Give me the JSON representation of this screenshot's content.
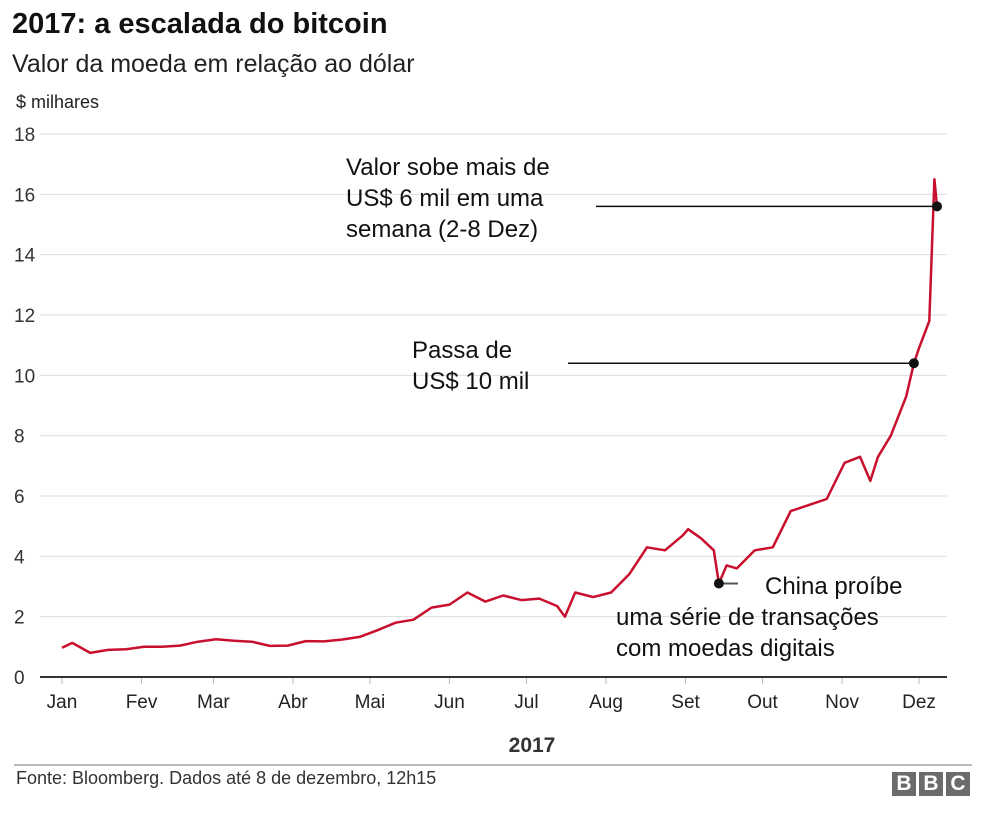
{
  "header": {
    "title": "2017: a escalada do bitcoin",
    "subtitle": "Valor da moeda em relação ao dólar",
    "unit": "$ milhares"
  },
  "footer": {
    "source": "Fonte: Bloomberg. Dados até 8 de dezembro, 12h15",
    "logo": "BBC"
  },
  "chart_data": {
    "type": "line",
    "title": "2017: a escalada do bitcoin",
    "subtitle": "Valor da moeda em relação ao dólar",
    "ylabel": "$ milhares",
    "xlabel": "2017",
    "ylim": [
      0,
      18
    ],
    "yticks": [
      0,
      2,
      4,
      6,
      8,
      10,
      12,
      14,
      16,
      18
    ],
    "xticks": [
      "Jan",
      "Fev",
      "Mar",
      "Abr",
      "Mai",
      "Jun",
      "Jul",
      "Aug",
      "Set",
      "Out",
      "Nov",
      "Dez"
    ],
    "grid": true,
    "color": "#c8102e",
    "series": [
      {
        "values": [
          [
            "2017-01-01",
            0.97
          ],
          [
            "2017-01-05",
            1.13
          ],
          [
            "2017-01-12",
            0.8
          ],
          [
            "2017-01-19",
            0.9
          ],
          [
            "2017-01-26",
            0.92
          ],
          [
            "2017-02-02",
            1.0
          ],
          [
            "2017-02-09",
            1.0
          ],
          [
            "2017-02-16",
            1.04
          ],
          [
            "2017-02-23",
            1.17
          ],
          [
            "2017-03-02",
            1.25
          ],
          [
            "2017-03-09",
            1.2
          ],
          [
            "2017-03-16",
            1.17
          ],
          [
            "2017-03-23",
            1.03
          ],
          [
            "2017-03-30",
            1.04
          ],
          [
            "2017-04-06",
            1.19
          ],
          [
            "2017-04-13",
            1.18
          ],
          [
            "2017-04-20",
            1.24
          ],
          [
            "2017-04-27",
            1.33
          ],
          [
            "2017-05-04",
            1.55
          ],
          [
            "2017-05-11",
            1.8
          ],
          [
            "2017-05-18",
            1.9
          ],
          [
            "2017-05-25",
            2.3
          ],
          [
            "2017-06-01",
            2.4
          ],
          [
            "2017-06-08",
            2.8
          ],
          [
            "2017-06-15",
            2.5
          ],
          [
            "2017-06-22",
            2.7
          ],
          [
            "2017-06-29",
            2.55
          ],
          [
            "2017-07-06",
            2.6
          ],
          [
            "2017-07-13",
            2.35
          ],
          [
            "2017-07-16",
            2.0
          ],
          [
            "2017-07-20",
            2.8
          ],
          [
            "2017-07-27",
            2.65
          ],
          [
            "2017-08-03",
            2.8
          ],
          [
            "2017-08-10",
            3.4
          ],
          [
            "2017-08-17",
            4.3
          ],
          [
            "2017-08-24",
            4.2
          ],
          [
            "2017-08-31",
            4.7
          ],
          [
            "2017-09-02",
            4.9
          ],
          [
            "2017-09-07",
            4.6
          ],
          [
            "2017-09-12",
            4.2
          ],
          [
            "2017-09-14",
            3.1
          ],
          [
            "2017-09-17",
            3.7
          ],
          [
            "2017-09-21",
            3.6
          ],
          [
            "2017-09-28",
            4.2
          ],
          [
            "2017-10-05",
            4.3
          ],
          [
            "2017-10-12",
            5.5
          ],
          [
            "2017-10-19",
            5.7
          ],
          [
            "2017-10-26",
            5.9
          ],
          [
            "2017-11-02",
            7.1
          ],
          [
            "2017-11-08",
            7.3
          ],
          [
            "2017-11-12",
            6.5
          ],
          [
            "2017-11-15",
            7.3
          ],
          [
            "2017-11-20",
            8.0
          ],
          [
            "2017-11-26",
            9.3
          ],
          [
            "2017-11-29",
            10.4
          ],
          [
            "2017-12-01",
            10.9
          ],
          [
            "2017-12-05",
            11.8
          ],
          [
            "2017-12-07",
            16.5
          ],
          [
            "2017-12-08",
            15.6
          ]
        ]
      }
    ],
    "annotations": [
      {
        "date": "2017-12-08",
        "value": 15.6,
        "lines": [
          "Valor sobe mais de",
          "US$ 6 mil em uma",
          "semana (2-8 Dez)"
        ]
      },
      {
        "date": "2017-11-29",
        "value": 10.4,
        "lines": [
          "Passa de",
          "US$ 10 mil"
        ]
      },
      {
        "date": "2017-09-14",
        "value": 3.1,
        "lines": [
          "China proíbe",
          "uma série de transações",
          "com moedas digitais"
        ]
      }
    ]
  }
}
